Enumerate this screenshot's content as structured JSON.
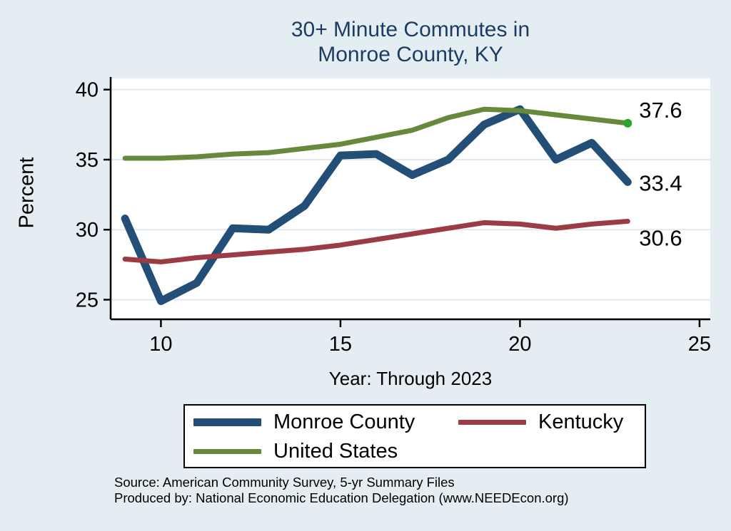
{
  "chart_data": {
    "type": "line",
    "title_line1": "30+ Minute Commutes in",
    "title_line2": "Monroe County, KY",
    "ylabel": "Percent",
    "xlabel": "Year: Through 2023",
    "x": [
      9,
      10,
      11,
      12,
      13,
      14,
      15,
      16,
      17,
      18,
      19,
      20,
      21,
      22,
      23
    ],
    "x_ticks": [
      10,
      15,
      20,
      25
    ],
    "y_ticks": [
      25,
      30,
      35,
      40
    ],
    "xlim": [
      8.6,
      25.3
    ],
    "ylim": [
      23.6,
      40.8
    ],
    "grid": true,
    "legend_position": "bottom",
    "series": [
      {
        "name": "Monroe County",
        "color": "#234f76",
        "stroke_width": 11,
        "values": [
          30.8,
          24.9,
          26.2,
          30.1,
          30.0,
          31.7,
          35.3,
          35.4,
          33.9,
          35.0,
          37.5,
          38.6,
          35.0,
          36.2,
          33.4
        ],
        "end_label": "33.4",
        "end_label_dx": 16,
        "end_label_dy": 12
      },
      {
        "name": "Kentucky",
        "color": "#9d3b45",
        "stroke_width": 7,
        "values": [
          27.9,
          27.7,
          28.0,
          28.2,
          28.4,
          28.6,
          28.9,
          29.3,
          29.7,
          30.1,
          30.5,
          30.4,
          30.1,
          30.4,
          30.6
        ],
        "end_label": "30.6",
        "end_label_dx": 16,
        "end_label_dy": 34
      },
      {
        "name": "United States",
        "color": "#66893c",
        "stroke_width": 7,
        "values": [
          35.1,
          35.1,
          35.2,
          35.4,
          35.5,
          35.8,
          36.1,
          36.6,
          37.1,
          38.0,
          38.6,
          38.5,
          38.2,
          37.9,
          37.6
        ],
        "end_label": "37.6",
        "end_label_dx": 16,
        "end_label_dy": -8,
        "end_dot_color": "#27a727"
      }
    ],
    "colors": {
      "background": "#e4eef2",
      "plot_background": "#ffffff",
      "gridline": "#dfeaf2",
      "axis": "#000000",
      "title": "#1c3c64",
      "tick_label": "#000000",
      "end_label": "#000000"
    }
  },
  "source": {
    "line1": "Source: American Community Survey, 5-yr Summary Files",
    "line2": "Produced by: National Economic Education Delegation (www.NEEDEcon.org)"
  }
}
